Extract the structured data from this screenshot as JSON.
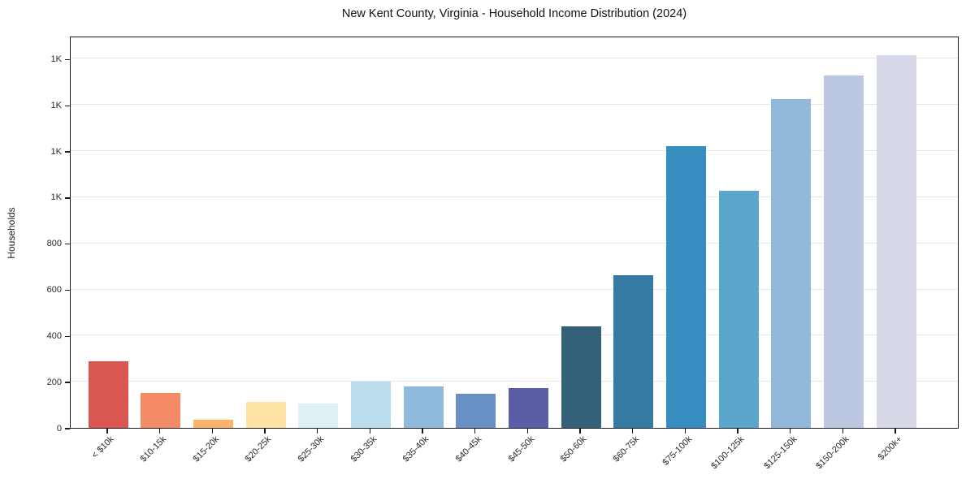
{
  "chart_data": {
    "type": "bar",
    "title": "New Kent County, Virginia - Household Income Distribution (2024)",
    "xlabel": "",
    "ylabel": "Households",
    "categories": [
      "< $10k",
      "$10-15k",
      "$15-20k",
      "$20-25k",
      "$25-30k",
      "$30-35k",
      "$35-40k",
      "$40-45k",
      "$45-50k",
      "$50-60k",
      "$60-75k",
      "$75-100k",
      "$100-125k",
      "$125-150k",
      "$150-200k",
      "$200k+"
    ],
    "values": [
      288,
      152,
      35,
      112,
      107,
      199,
      180,
      147,
      172,
      440,
      660,
      1223,
      1029,
      1425,
      1528,
      1615
    ],
    "bar_colors": [
      "#da5650",
      "#f58a66",
      "#fbb269",
      "#fde3a1",
      "#e0f1f5",
      "#badded",
      "#90badb",
      "#6890c5",
      "#5b5ea7",
      "#346079",
      "#347ba3",
      "#358dc0",
      "#5ba6cb",
      "#92b9da",
      "#bcc8e2",
      "#d7d8e7"
    ],
    "ylim": [
      0,
      1700
    ],
    "yticks": [
      {
        "value": 0,
        "label": "0"
      },
      {
        "value": 200,
        "label": "200"
      },
      {
        "value": 400,
        "label": "400"
      },
      {
        "value": 600,
        "label": "600"
      },
      {
        "value": 800,
        "label": "800"
      },
      {
        "value": 1000,
        "label": "1K"
      },
      {
        "value": 1200,
        "label": "1K"
      },
      {
        "value": 1400,
        "label": "1K"
      },
      {
        "value": 1600,
        "label": "1K"
      }
    ],
    "grid": "horizontal gridlines on",
    "legend": "none"
  },
  "colors": {
    "background": "#ffffff",
    "grid": "#e6e6e6",
    "spine": "#1a1a1a",
    "tick": "#1a1a1a",
    "tick_label": "#2b2b2b",
    "title": "#111111"
  }
}
